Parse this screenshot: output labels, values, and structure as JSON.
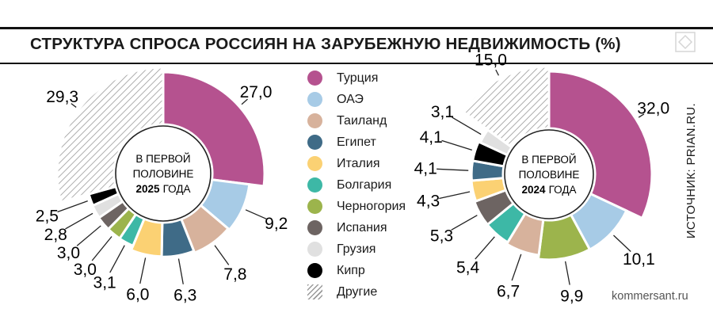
{
  "title": "СТРУКТУРА СПРОСА РОССИЯН НА ЗАРУБЕЖНУЮ НЕДВИЖИМОСТЬ (%)",
  "source": "ИСТОЧНИК: PRIAN.RU.",
  "footer": "kommersant.ru",
  "colors": {
    "Турция": "#b5528f",
    "ОАЭ": "#a7cbe6",
    "Таиланд": "#d7b29c",
    "Египет": "#3f6b87",
    "Италия": "#fbd173",
    "Болгария": "#3db8a6",
    "Черногория": "#9cb44c",
    "Испания": "#6d6462",
    "Грузия": "#e0e0e0",
    "Кипр": "#000000",
    "Другие": "hatch"
  },
  "legend": [
    "Турция",
    "ОАЭ",
    "Таиланд",
    "Египет",
    "Италия",
    "Болгария",
    "Черногория",
    "Испания",
    "Грузия",
    "Кипр",
    "Другие"
  ],
  "chart_data": [
    {
      "type": "pie",
      "center_label": {
        "line1": "В ПЕРВОЙ",
        "line2": "ПОЛОВИНЕ",
        "year": "2025",
        "word": "ГОДА"
      },
      "categories": [
        "Турция",
        "ОАЭ",
        "Таиланд",
        "Египет",
        "Италия",
        "Болгария",
        "Черногория",
        "Испания",
        "Грузия",
        "Кипр",
        "Другие"
      ],
      "values": [
        27.0,
        9.2,
        7.8,
        6.3,
        6.0,
        3.1,
        3.0,
        3.0,
        2.8,
        2.5,
        29.3
      ],
      "labels": [
        "27,0",
        "9,2",
        "7,8",
        "6,3",
        "6,0",
        "3,1",
        "3,0",
        "3,0",
        "2,8",
        "2,5",
        "29,3"
      ]
    },
    {
      "type": "pie",
      "center_label": {
        "line1": "В ПЕРВОЙ",
        "line2": "ПОЛОВИНЕ",
        "year": "2024",
        "word": "ГОДА"
      },
      "categories": [
        "Турция",
        "ОАЭ",
        "Черногория",
        "Таиланд",
        "Болгария",
        "Испания",
        "Италия",
        "Египет",
        "Кипр",
        "Грузия",
        "Другие"
      ],
      "values": [
        32.0,
        10.1,
        9.9,
        6.7,
        5.4,
        5.3,
        4.3,
        4.1,
        4.1,
        3.1,
        15.0
      ],
      "labels": [
        "32,0",
        "10,1",
        "9,9",
        "6,7",
        "5,4",
        "5,3",
        "4,3",
        "4,1",
        "4,1",
        "3,1",
        "15,0"
      ]
    }
  ]
}
